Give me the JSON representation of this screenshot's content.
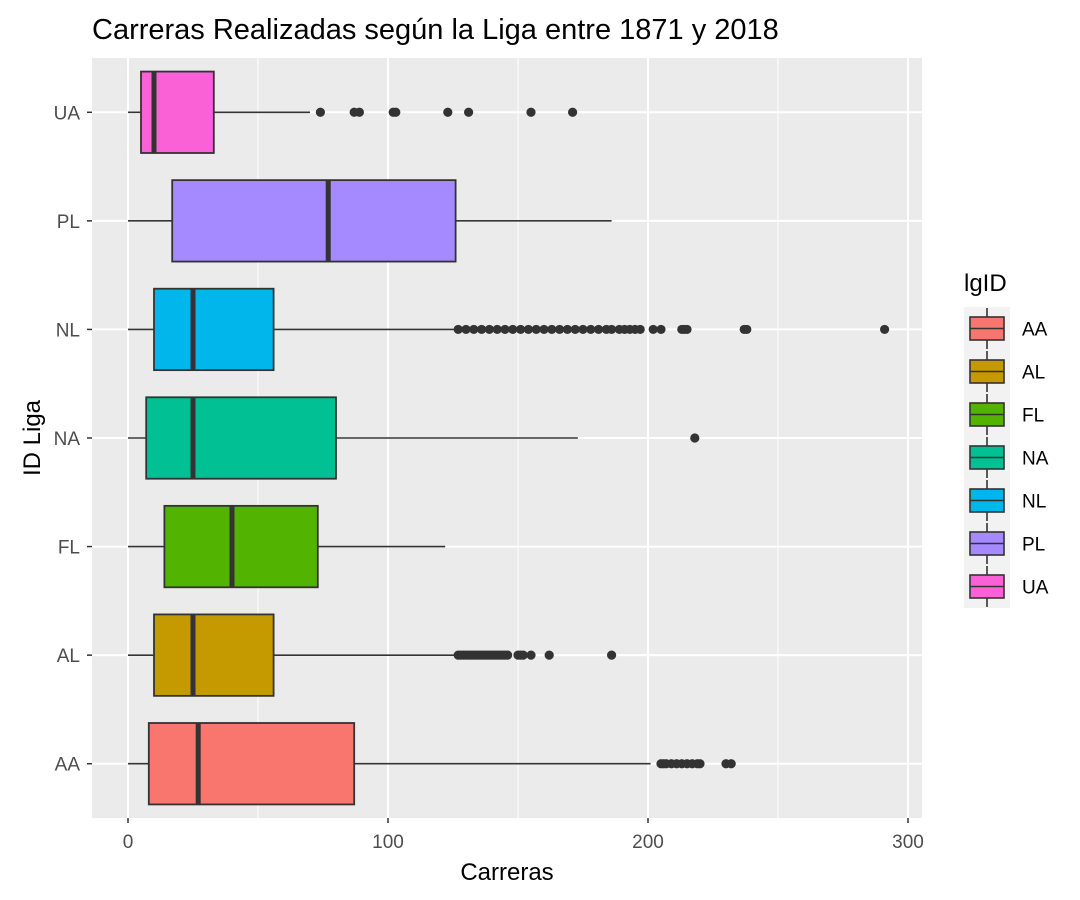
{
  "chart_data": {
    "type": "boxplot",
    "orientation": "horizontal",
    "title": "Carreras Realizadas según la Liga entre 1871 y 2018",
    "xlabel": "Carreras",
    "ylabel": "ID Liga",
    "xlim": [
      -14,
      305
    ],
    "xticks": [
      0,
      100,
      200,
      300
    ],
    "xtick_labels": [
      "0",
      "100",
      "200",
      "300"
    ],
    "grid": true,
    "legend": {
      "title": "lgID",
      "position": "right",
      "entries": [
        "AA",
        "AL",
        "FL",
        "NA",
        "NL",
        "PL",
        "UA"
      ]
    },
    "series": [
      {
        "name": "AA",
        "color": "#F8766D",
        "min": 0,
        "q1": 8,
        "median": 27,
        "q3": 87,
        "whisker_high": 201,
        "outliers": [
          205,
          206,
          207,
          209,
          211,
          213,
          215,
          217,
          219,
          220,
          230,
          232
        ]
      },
      {
        "name": "AL",
        "color": "#C49A00",
        "min": 0,
        "q1": 10,
        "median": 25,
        "q3": 56,
        "whisker_high": 126,
        "outliers": [
          127,
          128,
          129,
          130,
          131,
          132,
          133,
          134,
          135,
          136,
          137,
          138,
          139,
          140,
          141,
          142,
          143,
          144,
          145,
          146,
          150,
          151,
          152,
          155,
          162,
          186
        ]
      },
      {
        "name": "FL",
        "color": "#53B400",
        "min": 0,
        "q1": 14,
        "median": 40,
        "q3": 73,
        "whisker_high": 122,
        "outliers": []
      },
      {
        "name": "NA",
        "color": "#00C094",
        "min": 0,
        "q1": 7,
        "median": 25,
        "q3": 80,
        "whisker_high": 173,
        "outliers": [
          218
        ]
      },
      {
        "name": "NL",
        "color": "#00B6EB",
        "min": 0,
        "q1": 10,
        "median": 25,
        "q3": 56,
        "whisker_high": 126,
        "outliers": [
          127,
          130,
          133,
          136,
          139,
          142,
          145,
          148,
          151,
          154,
          157,
          160,
          163,
          166,
          169,
          172,
          175,
          178,
          181,
          184,
          186,
          189,
          191,
          193,
          195,
          197,
          202,
          205,
          213,
          214,
          215,
          237,
          238,
          291
        ]
      },
      {
        "name": "PL",
        "color": "#A58AFF",
        "min": 0,
        "q1": 17,
        "median": 77,
        "q3": 126,
        "whisker_high": 186,
        "outliers": []
      },
      {
        "name": "UA",
        "color": "#FB61D7",
        "min": 0,
        "q1": 5,
        "median": 10,
        "q3": 33,
        "whisker_high": 70,
        "outliers": [
          74,
          87,
          89,
          102,
          103,
          123,
          131,
          155,
          171
        ]
      }
    ]
  }
}
